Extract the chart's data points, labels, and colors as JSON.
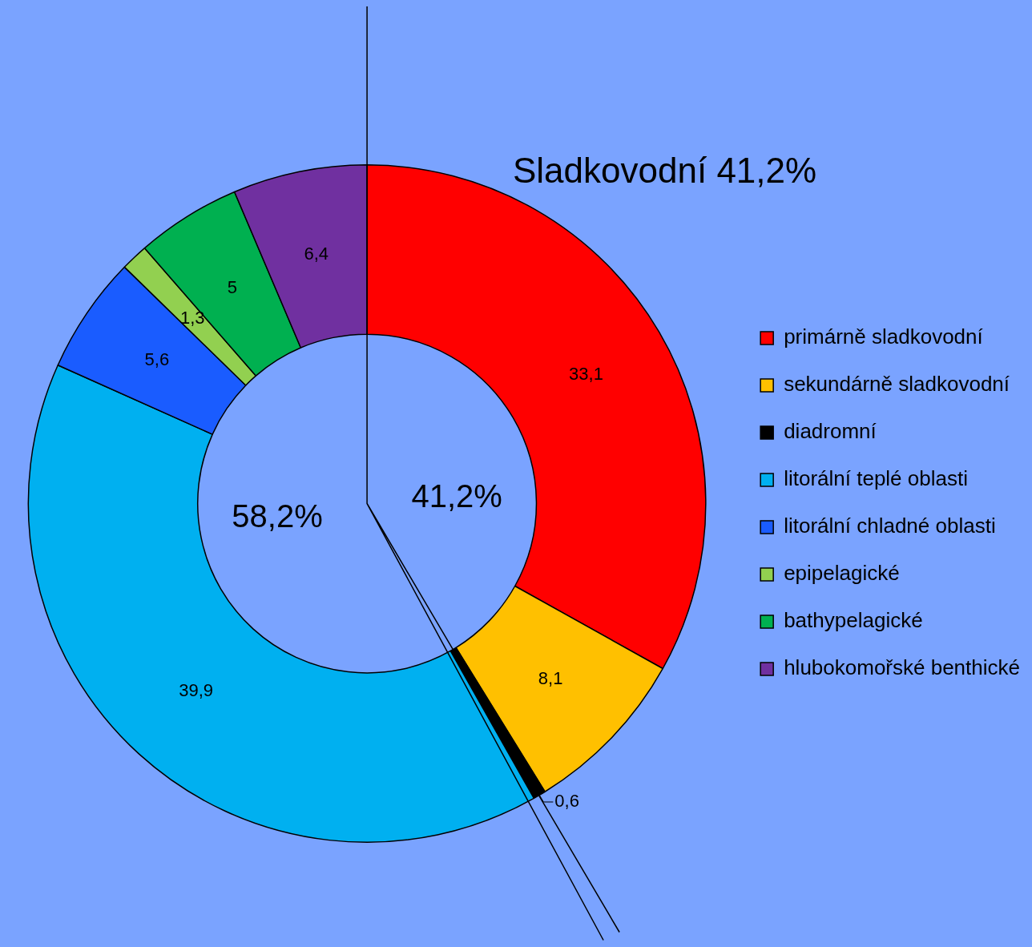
{
  "chart_data": {
    "type": "donut",
    "title": "Sladkovodní 41,2%",
    "categories": [
      "primárně sladkovodní",
      "sekundárně sladkovodní",
      "diadromní",
      "litorální teplé oblasti",
      "litorální chladné oblasti",
      "epipelagické",
      "bathypelagické",
      "hlubokomořské benthické"
    ],
    "values": [
      33.1,
      8.1,
      0.6,
      39.9,
      5.6,
      1.3,
      5,
      6.4
    ],
    "colors": [
      "#ff0000",
      "#ffc000",
      "#000000",
      "#00b0f0",
      "#1a5cff",
      "#92d050",
      "#00b050",
      "#7030a0"
    ],
    "value_labels": [
      "33,1",
      "8,1",
      "0,6",
      "39,9",
      "5,6",
      "1,3",
      "5",
      "6,4"
    ],
    "legend": "right",
    "annotations": [
      "41,2%",
      "58,2%"
    ]
  }
}
